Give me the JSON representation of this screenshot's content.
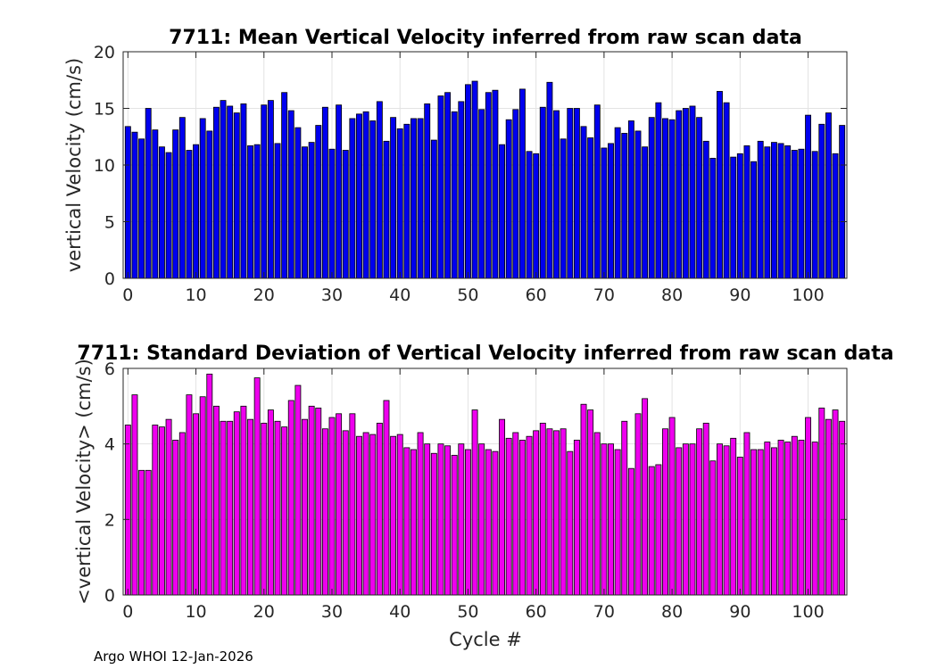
{
  "chart_data": [
    {
      "type": "bar",
      "title": "7711: Mean Vertical Velocity inferred from raw scan data",
      "xlabel": "",
      "ylabel": "vertical Velocity (cm/s)",
      "ylim": [
        0,
        20
      ],
      "xlim": [
        -0.7,
        105.7
      ],
      "yticks": [
        0,
        5,
        10,
        15,
        20
      ],
      "xticks": [
        0,
        10,
        20,
        30,
        40,
        50,
        60,
        70,
        80,
        90,
        100
      ],
      "bar_color": "#0000ee",
      "grid": true,
      "x": [
        0,
        1,
        2,
        3,
        4,
        5,
        6,
        7,
        8,
        9,
        10,
        11,
        12,
        13,
        14,
        15,
        16,
        17,
        18,
        19,
        20,
        21,
        22,
        23,
        24,
        25,
        26,
        27,
        28,
        29,
        30,
        31,
        32,
        33,
        34,
        35,
        36,
        37,
        38,
        39,
        40,
        41,
        42,
        43,
        44,
        45,
        46,
        47,
        48,
        49,
        50,
        51,
        52,
        53,
        54,
        55,
        56,
        57,
        58,
        59,
        60,
        61,
        62,
        63,
        64,
        65,
        66,
        67,
        68,
        69,
        70,
        71,
        72,
        73,
        74,
        75,
        76,
        77,
        78,
        79,
        80,
        81,
        82,
        83,
        84,
        85,
        86,
        87,
        88,
        89,
        90,
        91,
        92,
        93,
        94,
        95,
        96,
        97,
        98,
        99,
        100,
        101,
        102,
        103,
        104,
        105
      ],
      "values": [
        13.4,
        12.9,
        12.3,
        15.0,
        13.1,
        11.6,
        11.1,
        13.1,
        14.2,
        11.3,
        11.8,
        14.1,
        13.0,
        15.1,
        15.7,
        15.2,
        14.6,
        15.4,
        11.7,
        11.8,
        15.3,
        15.7,
        11.9,
        16.4,
        14.8,
        13.3,
        11.6,
        12.0,
        13.5,
        15.1,
        11.4,
        15.3,
        11.3,
        14.1,
        14.5,
        14.7,
        13.9,
        15.6,
        12.1,
        14.2,
        13.2,
        13.6,
        14.1,
        14.1,
        15.4,
        12.2,
        16.1,
        16.4,
        14.7,
        15.6,
        17.1,
        17.4,
        14.9,
        16.4,
        16.6,
        11.8,
        14.0,
        14.9,
        16.7,
        11.2,
        11.0,
        15.1,
        17.3,
        14.8,
        12.3,
        15.0,
        15.0,
        13.4,
        12.4,
        15.3,
        11.5,
        11.9,
        13.3,
        12.8,
        13.9,
        13.0,
        11.6,
        14.2,
        15.5,
        14.1,
        14.0,
        14.8,
        15.0,
        15.2,
        14.2,
        12.1,
        10.6,
        16.5,
        15.5,
        10.7,
        11.0,
        11.7,
        10.3,
        12.1,
        11.6,
        12.0,
        11.9,
        11.7,
        11.3,
        11.4,
        14.4,
        11.2,
        13.6,
        14.6,
        11.0,
        13.5
      ]
    },
    {
      "type": "bar",
      "title": "7711: Standard Deviation of Vertical Velocity inferred from raw scan data",
      "xlabel": "Cycle #",
      "ylabel": "<vertical Velocity> (cm/s)",
      "ylim": [
        0,
        6
      ],
      "xlim": [
        -0.7,
        105.7
      ],
      "yticks": [
        0,
        2,
        4,
        6
      ],
      "xticks": [
        0,
        10,
        20,
        30,
        40,
        50,
        60,
        70,
        80,
        90,
        100
      ],
      "bar_color": "#ee00ee",
      "grid": true,
      "x": [
        0,
        1,
        2,
        3,
        4,
        5,
        6,
        7,
        8,
        9,
        10,
        11,
        12,
        13,
        14,
        15,
        16,
        17,
        18,
        19,
        20,
        21,
        22,
        23,
        24,
        25,
        26,
        27,
        28,
        29,
        30,
        31,
        32,
        33,
        34,
        35,
        36,
        37,
        38,
        39,
        40,
        41,
        42,
        43,
        44,
        45,
        46,
        47,
        48,
        49,
        50,
        51,
        52,
        53,
        54,
        55,
        56,
        57,
        58,
        59,
        60,
        61,
        62,
        63,
        64,
        65,
        66,
        67,
        68,
        69,
        70,
        71,
        72,
        73,
        74,
        75,
        76,
        77,
        78,
        79,
        80,
        81,
        82,
        83,
        84,
        85,
        86,
        87,
        88,
        89,
        90,
        91,
        92,
        93,
        94,
        95,
        96,
        97,
        98,
        99,
        100,
        101,
        102,
        103,
        104,
        105
      ],
      "values": [
        4.5,
        5.3,
        3.3,
        3.3,
        4.5,
        4.45,
        4.65,
        4.1,
        4.3,
        5.3,
        4.8,
        5.25,
        5.85,
        5.0,
        4.6,
        4.6,
        4.85,
        5.0,
        4.65,
        5.75,
        4.55,
        4.9,
        4.6,
        4.45,
        5.15,
        5.55,
        4.65,
        5.0,
        4.95,
        4.4,
        4.7,
        4.8,
        4.35,
        4.8,
        4.2,
        4.3,
        4.25,
        4.55,
        5.15,
        4.2,
        4.25,
        3.9,
        3.85,
        4.3,
        4.0,
        3.75,
        4.0,
        3.95,
        3.7,
        4.0,
        3.85,
        4.9,
        4.0,
        3.85,
        3.8,
        4.65,
        4.15,
        4.3,
        4.1,
        4.2,
        4.35,
        4.55,
        4.4,
        4.35,
        4.4,
        3.8,
        4.1,
        5.05,
        4.9,
        4.3,
        4.0,
        4.0,
        3.85,
        4.6,
        3.35,
        4.8,
        5.2,
        3.4,
        3.45,
        4.4,
        4.7,
        3.9,
        4.0,
        4.0,
        4.4,
        4.55,
        3.55,
        4.0,
        3.95,
        4.15,
        3.65,
        4.3,
        3.85,
        3.85,
        4.05,
        3.9,
        4.1,
        4.05,
        4.2,
        4.1,
        4.7,
        4.05,
        4.95,
        4.65,
        4.9,
        4.6
      ]
    }
  ],
  "footer": "Argo WHOI 12-Jan-2026",
  "colors": {
    "axis": "#262626",
    "grid": "#e3e3e3",
    "bar_edge": "#000000"
  }
}
